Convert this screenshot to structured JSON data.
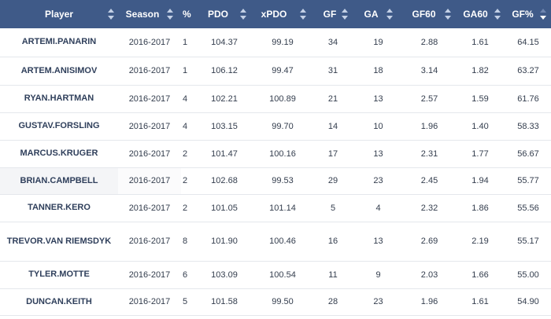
{
  "columns": [
    {
      "key": "player",
      "label": "Player"
    },
    {
      "key": "season",
      "label": "Season"
    },
    {
      "key": "pct",
      "label": "%"
    },
    {
      "key": "pdo",
      "label": "PDO"
    },
    {
      "key": "xpdo",
      "label": "xPDO"
    },
    {
      "key": "gf",
      "label": "GF"
    },
    {
      "key": "ga",
      "label": "GA"
    },
    {
      "key": "gf60",
      "label": "GF60"
    },
    {
      "key": "ga60",
      "label": "GA60"
    },
    {
      "key": "gfpct",
      "label": "GF%"
    }
  ],
  "sorted_column": "gfpct",
  "sort_direction": "descending",
  "rows": [
    {
      "player": "ARTEMI.PANARIN",
      "season": "2016-2017",
      "pct": "1",
      "pdo": "104.37",
      "xpdo": "99.19",
      "gf": "34",
      "ga": "19",
      "gf60": "2.88",
      "ga60": "1.61",
      "gfpct": "64.15"
    },
    {
      "player": "ARTEM.ANISIMOV",
      "season": "2016-2017",
      "pct": "1",
      "pdo": "106.12",
      "xpdo": "99.47",
      "gf": "31",
      "ga": "18",
      "gf60": "3.14",
      "ga60": "1.82",
      "gfpct": "63.27"
    },
    {
      "player": "RYAN.HARTMAN",
      "season": "2016-2017",
      "pct": "4",
      "pdo": "102.21",
      "xpdo": "100.89",
      "gf": "21",
      "ga": "13",
      "gf60": "2.57",
      "ga60": "1.59",
      "gfpct": "61.76"
    },
    {
      "player": "GUSTAV.FORSLING",
      "season": "2016-2017",
      "pct": "4",
      "pdo": "103.15",
      "xpdo": "99.70",
      "gf": "14",
      "ga": "10",
      "gf60": "1.96",
      "ga60": "1.40",
      "gfpct": "58.33"
    },
    {
      "player": "MARCUS.KRUGER",
      "season": "2016-2017",
      "pct": "2",
      "pdo": "101.47",
      "xpdo": "100.16",
      "gf": "17",
      "ga": "13",
      "gf60": "2.31",
      "ga60": "1.77",
      "gfpct": "56.67"
    },
    {
      "player": "BRIAN.CAMPBELL",
      "season": "2016-2017",
      "pct": "2",
      "pdo": "102.68",
      "xpdo": "99.53",
      "gf": "29",
      "ga": "23",
      "gf60": "2.45",
      "ga60": "1.94",
      "gfpct": "55.77"
    },
    {
      "player": "TANNER.KERO",
      "season": "2016-2017",
      "pct": "2",
      "pdo": "101.05",
      "xpdo": "101.14",
      "gf": "5",
      "ga": "4",
      "gf60": "2.32",
      "ga60": "1.86",
      "gfpct": "55.56"
    },
    {
      "player": "TREVOR.VAN RIEMSDYK",
      "season": "2016-2017",
      "pct": "8",
      "pdo": "101.90",
      "xpdo": "100.46",
      "gf": "16",
      "ga": "13",
      "gf60": "2.69",
      "ga60": "2.19",
      "gfpct": "55.17"
    },
    {
      "player": "TYLER.MOTTE",
      "season": "2016-2017",
      "pct": "6",
      "pdo": "103.09",
      "xpdo": "100.54",
      "gf": "11",
      "ga": "9",
      "gf60": "2.03",
      "ga60": "1.66",
      "gfpct": "55.00"
    },
    {
      "player": "DUNCAN.KEITH",
      "season": "2016-2017",
      "pct": "5",
      "pdo": "101.58",
      "xpdo": "99.50",
      "gf": "28",
      "ga": "23",
      "gf60": "1.96",
      "ga60": "1.61",
      "gfpct": "54.90"
    }
  ],
  "colors": {
    "header_bg": "#3f5a88",
    "header_text": "#ffffff",
    "player_text": "#2f3f5b"
  }
}
